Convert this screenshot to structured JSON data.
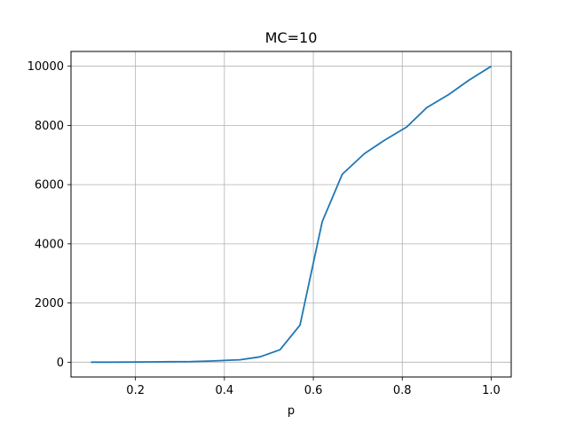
{
  "chart_data": {
    "type": "line",
    "title": "MC=10",
    "xlabel": "p",
    "ylabel": "",
    "xlim": [
      0.055,
      1.045
    ],
    "ylim": [
      -500,
      10500
    ],
    "xticks": [
      0.2,
      0.4,
      0.6,
      0.8,
      1.0
    ],
    "xtick_labels": [
      "0.2",
      "0.4",
      "0.6",
      "0.8",
      "1.0"
    ],
    "yticks": [
      0,
      2000,
      4000,
      6000,
      8000,
      10000
    ],
    "ytick_labels": [
      "0",
      "2000",
      "4000",
      "6000",
      "8000",
      "10000"
    ],
    "grid": true,
    "legend": "none",
    "series": [
      {
        "color": "#1f77b4",
        "x": [
          0.1,
          0.145,
          0.19,
          0.235,
          0.28,
          0.325,
          0.37,
          0.415,
          0.435,
          0.48,
          0.525,
          0.57,
          0.62,
          0.665,
          0.715,
          0.76,
          0.81,
          0.855,
          0.905,
          0.95,
          1.0
        ],
        "y": [
          0,
          2,
          5,
          10,
          15,
          20,
          40,
          70,
          80,
          180,
          420,
          1250,
          4750,
          6350,
          7050,
          7500,
          7950,
          8600,
          9050,
          9530,
          10000
        ]
      }
    ]
  }
}
